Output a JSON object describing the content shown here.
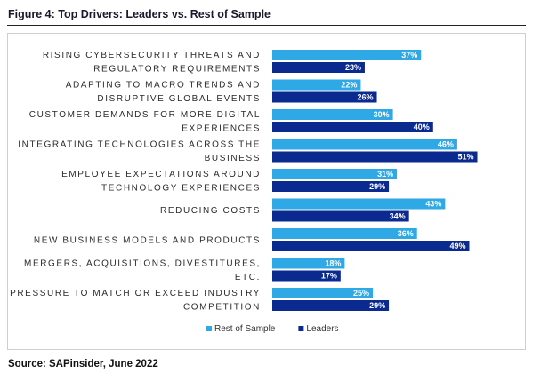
{
  "figure": {
    "title": "Figure 4: Top Drivers: Leaders vs. Rest of Sample",
    "source": "Source: SAPinsider, June 2022"
  },
  "chart_data": {
    "type": "bar",
    "orientation": "horizontal",
    "categories": [
      [
        "RISING CYBERSECURITY THREATS AND",
        "REGULATORY REQUIREMENTS"
      ],
      [
        "ADAPTING TO MACRO TRENDS AND",
        "DISRUPTIVE GLOBAL EVENTS"
      ],
      [
        "CUSTOMER DEMANDS FOR MORE DIGITAL",
        "EXPERIENCES"
      ],
      [
        "INTEGRATING TECHNOLOGIES ACROSS THE",
        "BUSINESS"
      ],
      [
        "EMPLOYEE EXPECTATIONS AROUND",
        "TECHNOLOGY EXPERIENCES"
      ],
      [
        "REDUCING COSTS"
      ],
      [
        "NEW BUSINESS MODELS AND PRODUCTS"
      ],
      [
        "MERGERS, ACQUISITIONS, DIVESTITURES,",
        "ETC."
      ],
      [
        "PRESSURE TO MATCH OR EXCEED INDUSTRY",
        "COMPETITION"
      ]
    ],
    "series": [
      {
        "name": "Rest of Sample",
        "color": "#2fa9e6",
        "values": [
          37,
          22,
          30,
          46,
          31,
          43,
          36,
          18,
          25
        ]
      },
      {
        "name": "Leaders",
        "color": "#0b2a8f",
        "values": [
          23,
          26,
          40,
          51,
          29,
          34,
          49,
          17,
          29
        ]
      }
    ],
    "value_suffix": "%",
    "xlim": [
      0,
      100
    ],
    "grid": false,
    "legend_position": "bottom"
  }
}
